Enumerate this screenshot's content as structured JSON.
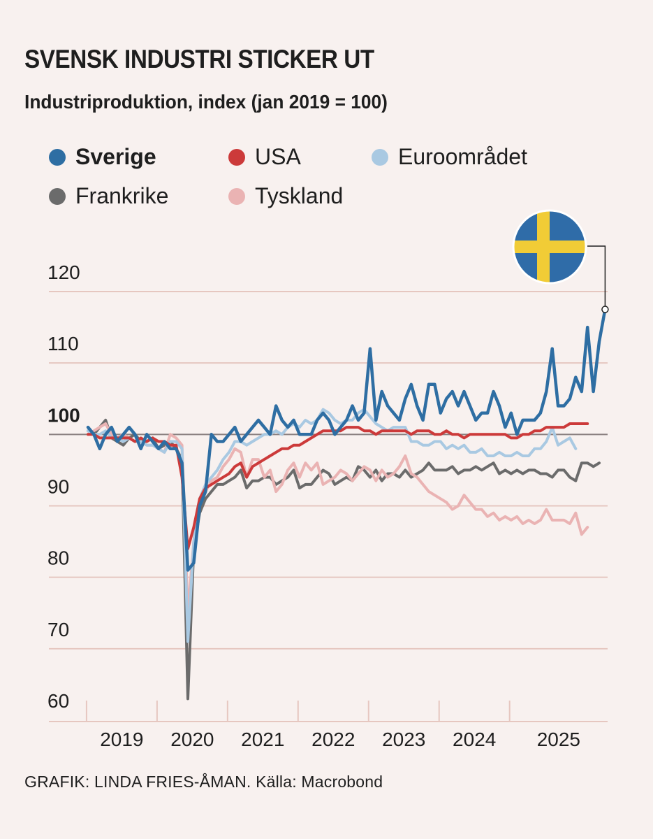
{
  "title": "SVENSK INDUSTRI STICKER UT",
  "subtitle": "Industriproduktion, index (jan 2019 = 100)",
  "source": "GRAFIK: LINDA FRIES-ÅMAN. Källa: Macrobond",
  "flag_icon": "sweden-flag-icon",
  "colors": {
    "background": "#f8f1ef",
    "gridline": "#e6c7c0",
    "Sverige": "#2e6ea3",
    "USA": "#cc3a3a",
    "Euroområdet": "#a9c9e2",
    "Frankrike": "#6b6b6b",
    "Tyskland": "#eab3b3",
    "flag_blue": "#2f6ca8",
    "flag_yellow": "#f1cc36"
  },
  "chart_data": {
    "type": "line",
    "title": "SVENSK INDUSTRI STICKER UT",
    "subtitle": "Industriproduktion, index (jan 2019 = 100)",
    "xlabel": "",
    "ylabel": "",
    "x_start": "2019-01",
    "x_end": "2025-06",
    "x_ticks": [
      "2019",
      "2020",
      "2021",
      "2022",
      "2023",
      "2024",
      "2025"
    ],
    "y_ticks": [
      "60",
      "70",
      "80",
      "90",
      "100",
      "110",
      "120"
    ],
    "y_tick_values": [
      60,
      70,
      80,
      90,
      100,
      110,
      120
    ],
    "y_bold_tick": "100",
    "ylim": [
      58,
      124
    ],
    "legend_position": "top",
    "grid": true,
    "series": [
      {
        "name": "Frankrike",
        "values": [
          100.5,
          100,
          101,
          102,
          99.5,
          99,
          98.5,
          99.5,
          100,
          99,
          99,
          99.5,
          98,
          98.5,
          99,
          98,
          96.5,
          63,
          84,
          89,
          91,
          92,
          93,
          93,
          93.5,
          94,
          95,
          92.5,
          93.5,
          93.5,
          94,
          94,
          93,
          93.5,
          94,
          95,
          92.5,
          93,
          93,
          94,
          95,
          94.5,
          93,
          93.5,
          94,
          93.5,
          95.5,
          95,
          94,
          95,
          93.5,
          94.5,
          94.5,
          94,
          95,
          94,
          94.5,
          95,
          96,
          95,
          95,
          95,
          95.5,
          94.5,
          95,
          95,
          95.5,
          95,
          95.5,
          96,
          94.5,
          95,
          94.5,
          95,
          94.5,
          95,
          95,
          94.5,
          94.5,
          94,
          95,
          95,
          94,
          93.5,
          96,
          96,
          95.5,
          96
        ]
      },
      {
        "name": "Tyskland",
        "values": [
          100,
          100.5,
          101,
          101.5,
          100,
          99.5,
          100,
          99.5,
          99,
          99,
          98.5,
          98.5,
          98,
          97.5,
          100,
          99.5,
          98.5,
          75,
          85,
          91,
          92,
          93.5,
          94,
          95.5,
          96.5,
          98,
          97.5,
          94,
          96.5,
          96.5,
          94,
          95,
          92,
          93,
          95,
          96,
          94,
          96,
          95,
          96,
          93,
          93.5,
          94,
          95,
          94.5,
          93.5,
          94.5,
          95.5,
          95,
          93.5,
          95,
          94,
          94.5,
          95.5,
          97,
          94.5,
          94,
          93,
          92,
          91.5,
          91,
          90.5,
          89.5,
          90,
          91.5,
          90.5,
          89.5,
          89.5,
          88.5,
          89,
          88,
          88.5,
          88,
          88.5,
          87.5,
          88,
          87.5,
          88,
          89.5,
          88,
          88,
          88,
          87.5,
          89,
          86,
          87
        ]
      },
      {
        "name": "Euroområdet",
        "values": [
          100.5,
          100,
          100,
          100.5,
          99.5,
          99.5,
          99,
          99.5,
          99,
          99,
          98.5,
          98.5,
          98,
          97.5,
          99,
          99,
          98,
          71,
          85,
          91,
          93,
          94,
          95,
          96.5,
          97.5,
          99,
          99,
          98.5,
          99,
          99.5,
          100,
          100,
          100.5,
          100,
          101,
          101.5,
          101,
          102,
          101.5,
          102,
          103.5,
          103,
          102,
          101.5,
          102,
          102,
          103,
          103.5,
          102.5,
          101.5,
          101,
          100.5,
          101,
          101,
          101,
          99,
          99,
          98.5,
          98.5,
          99,
          99,
          98,
          98.5,
          98,
          98.5,
          97.5,
          97.5,
          98,
          97,
          97,
          97.5,
          97,
          97,
          97.5,
          97,
          97,
          98,
          98,
          99,
          101,
          98.5,
          99,
          99.5,
          98
        ]
      },
      {
        "name": "USA",
        "values": [
          100,
          100,
          99.5,
          99.5,
          99.5,
          99.5,
          99.5,
          99.5,
          99,
          99.5,
          99,
          99.5,
          99,
          99,
          98.5,
          98.5,
          94,
          84,
          87,
          91,
          92.5,
          93,
          93.5,
          94,
          94.5,
          95.5,
          96,
          94,
          95.5,
          96,
          96.5,
          97,
          97.5,
          98,
          98,
          98.5,
          98.5,
          99,
          99.5,
          100,
          100.5,
          100.5,
          100.5,
          100.5,
          101,
          101,
          101,
          100.5,
          100.5,
          100,
          100.5,
          100.5,
          100.5,
          100.5,
          100.5,
          100,
          100.5,
          100.5,
          100.5,
          100,
          100,
          100.5,
          100,
          100,
          99.5,
          100,
          100,
          100,
          100,
          100,
          100,
          100,
          99.5,
          99.5,
          100,
          100,
          100.5,
          100.5,
          101,
          101,
          101,
          101,
          101.5,
          101.5,
          101.5,
          101.5
        ]
      },
      {
        "name": "Sverige",
        "values": [
          101,
          100,
          98,
          100,
          101,
          99,
          100,
          101,
          100,
          98,
          100,
          99,
          98,
          99,
          98,
          98,
          96,
          81,
          82,
          90,
          92,
          100,
          99,
          99,
          100,
          101,
          99,
          100,
          101,
          102,
          101,
          100,
          104,
          102,
          101,
          102,
          100,
          100,
          100,
          102,
          103,
          102,
          100,
          101,
          102,
          104,
          102,
          103,
          112,
          102,
          106,
          104,
          103,
          102,
          105,
          107,
          104,
          102,
          107,
          107,
          103,
          105,
          106,
          104,
          106,
          104,
          102,
          103,
          103,
          106,
          104,
          101,
          103,
          100,
          102,
          102,
          102,
          103,
          106,
          112,
          104,
          104,
          105,
          108,
          106,
          115,
          106,
          113,
          117.5
        ]
      }
    ]
  },
  "legend": [
    {
      "name": "Sverige",
      "bold": true
    },
    {
      "name": "USA",
      "bold": false
    },
    {
      "name": "Euroområdet",
      "bold": false
    },
    {
      "name": "Frankrike",
      "bold": false
    },
    {
      "name": "Tyskland",
      "bold": false
    }
  ]
}
